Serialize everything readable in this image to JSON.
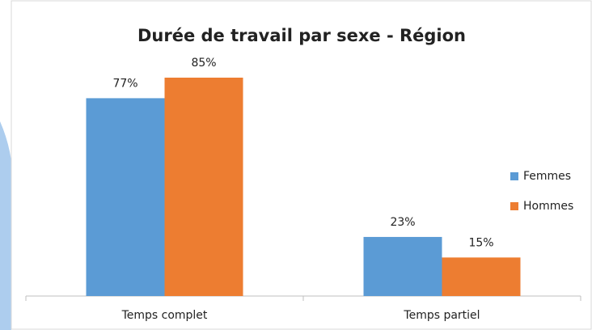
{
  "chart_data": {
    "type": "bar",
    "title": "Durée de travail par sexe - Région",
    "categories": [
      "Temps complet",
      "Temps partiel"
    ],
    "series": [
      {
        "name": "Femmes",
        "color": "#5b9bd5",
        "values": [
          77,
          23
        ],
        "value_labels": [
          "77%",
          "23%"
        ]
      },
      {
        "name": "Hommes",
        "color": "#ed7d31",
        "values": [
          85,
          15
        ],
        "value_labels": [
          "85%",
          "15%"
        ]
      }
    ],
    "legend": "right"
  }
}
